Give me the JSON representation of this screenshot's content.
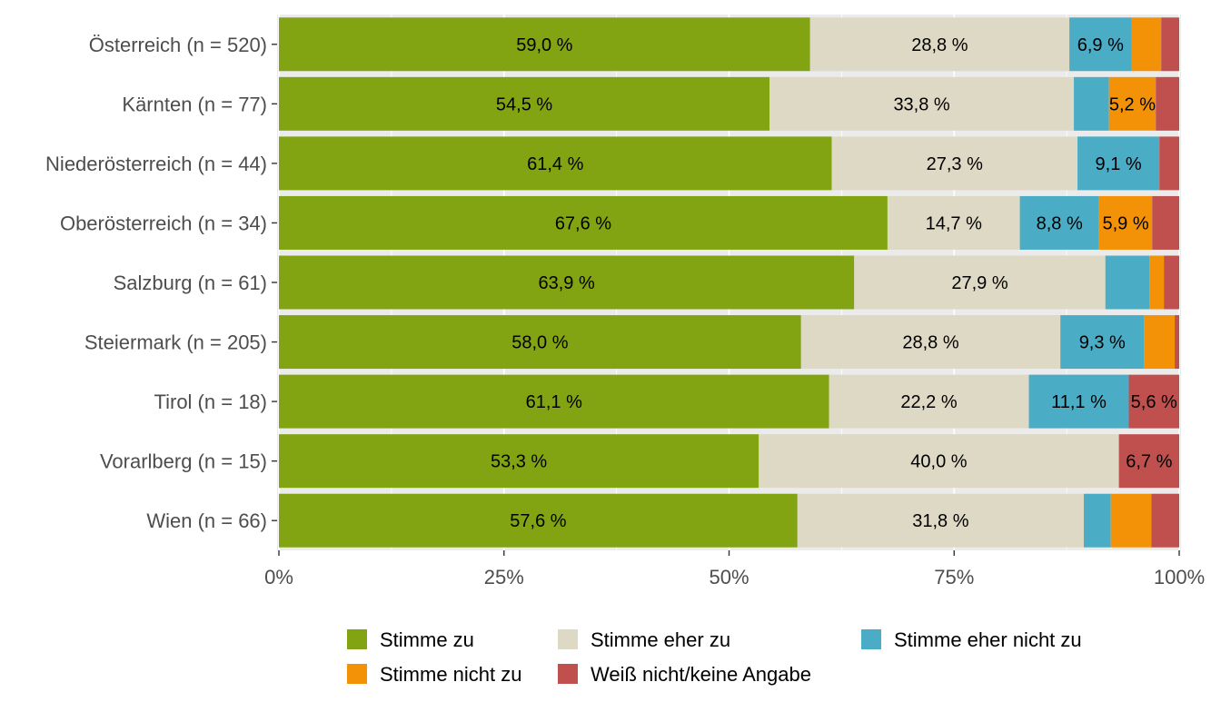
{
  "chart_data": {
    "type": "bar",
    "orientation": "horizontal",
    "stacked": true,
    "normalized": true,
    "categories": [
      "Österreich (n = 520)",
      "Kärnten (n = 77)",
      "Niederösterreich (n = 44)",
      "Oberösterreich (n = 34)",
      "Salzburg (n = 61)",
      "Steiermark (n = 205)",
      "Tirol (n = 18)",
      "Vorarlberg (n = 15)",
      "Wien (n = 66)"
    ],
    "series": [
      {
        "name": "Stimme zu",
        "color": "#82A412",
        "values": [
          59.0,
          54.5,
          61.4,
          67.6,
          63.9,
          58.0,
          61.1,
          53.3,
          57.6
        ],
        "labels": [
          "59,0 %",
          "54,5 %",
          "61,4 %",
          "67,6 %",
          "63,9 %",
          "58,0 %",
          "61,1 %",
          "53,3 %",
          "57,6 %"
        ]
      },
      {
        "name": "Stimme eher zu",
        "color": "#DED9C5",
        "values": [
          28.8,
          33.8,
          27.3,
          14.7,
          27.9,
          28.8,
          22.2,
          40.0,
          31.8
        ],
        "labels": [
          "28,8 %",
          "33,8 %",
          "27,3 %",
          "14,7 %",
          "27,9 %",
          "28,8 %",
          "22,2 %",
          "40,0 %",
          "31,8 %"
        ]
      },
      {
        "name": "Stimme eher nicht zu",
        "color": "#4BACC6",
        "values": [
          6.9,
          3.9,
          9.1,
          8.8,
          4.9,
          9.3,
          11.1,
          0.0,
          3.0
        ],
        "labels": [
          "6,9 %",
          "",
          "9,1 %",
          "8,8 %",
          "",
          "9,3 %",
          "11,1 %",
          "",
          ""
        ]
      },
      {
        "name": "Stimme nicht zu",
        "color": "#F39207",
        "values": [
          3.3,
          5.2,
          0.0,
          5.9,
          1.6,
          3.4,
          0.0,
          0.0,
          4.5
        ],
        "labels": [
          "",
          "5,2 %",
          "",
          "5,9 %",
          "",
          "",
          "",
          "",
          ""
        ]
      },
      {
        "name": "Weiß nicht/keine Angabe",
        "color": "#C0504D",
        "values": [
          2.0,
          2.6,
          2.2,
          3.0,
          1.7,
          0.5,
          5.6,
          6.7,
          3.1
        ],
        "labels": [
          "",
          "",
          "",
          "",
          "",
          "",
          "5,6 %",
          "6,7 %",
          ""
        ]
      }
    ],
    "xlim": [
      0,
      100
    ],
    "x_ticks": [
      0,
      25,
      50,
      75,
      100
    ],
    "x_tick_labels": [
      "0%",
      "25%",
      "50%",
      "75%",
      "100%"
    ],
    "panel_background": "#EBEBEB",
    "grid": true,
    "legend_position": "bottom"
  }
}
